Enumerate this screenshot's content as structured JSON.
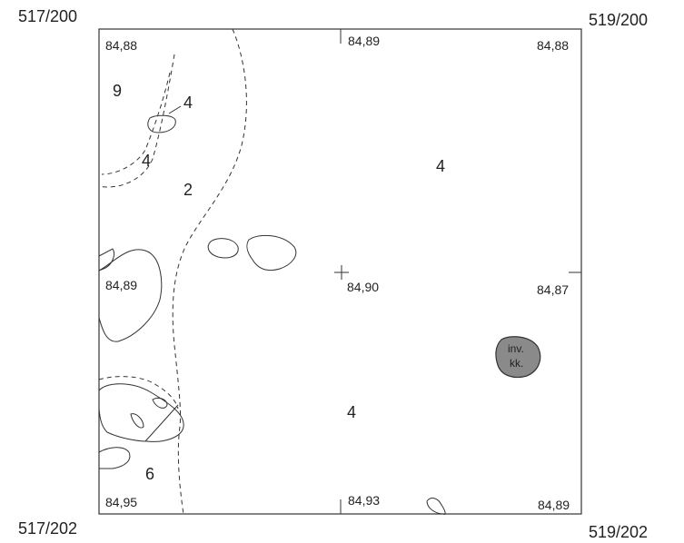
{
  "corners": {
    "top_left": "517/200",
    "top_right": "519/200",
    "bottom_left": "517/202",
    "bottom_right": "519/202"
  },
  "elevations": {
    "top_left": "84,88",
    "top_mid": "84,89",
    "top_right": "84,88",
    "mid_left": "84,89",
    "center": "84,90",
    "mid_right": "84,87",
    "bottom_left": "84,95",
    "bottom_mid": "84,93",
    "bottom_right": "84,89"
  },
  "zones": {
    "z9": "9",
    "z4_small_top": "4",
    "z4_left": "4",
    "z2": "2",
    "z4_right": "4",
    "z4_bottom": "4",
    "z6": "6"
  },
  "feature": {
    "line1": "inv.",
    "line2": "kk.",
    "fill": "#8a8a8a"
  }
}
